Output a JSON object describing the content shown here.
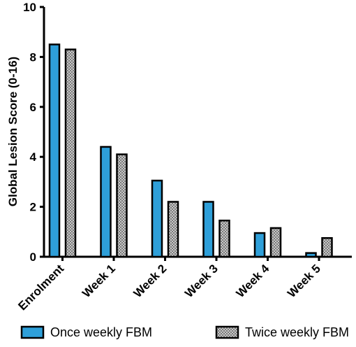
{
  "chart_data": {
    "type": "bar",
    "title": "",
    "xlabel": "",
    "ylabel": "Global Lesion Score (0-16)",
    "categories": [
      "Enrolment",
      "Week 1",
      "Week 2",
      "Week 3",
      "Week 4",
      "Week 5"
    ],
    "ylim": [
      0,
      10
    ],
    "yticks": [
      "0",
      "2",
      "4",
      "6",
      "8",
      "10"
    ],
    "series": [
      {
        "name": "Once weekly FBM",
        "values": [
          8.5,
          4.4,
          3.05,
          2.2,
          0.95,
          0.15
        ],
        "color": "#2e9fd9",
        "pattern": "solid"
      },
      {
        "name": "Twice weekly FBM",
        "values": [
          8.3,
          4.1,
          2.2,
          1.45,
          1.15,
          0.75
        ],
        "color": "#b4b4b4",
        "pattern": "checkered"
      }
    ],
    "legend_position": "bottom",
    "grid": false
  }
}
